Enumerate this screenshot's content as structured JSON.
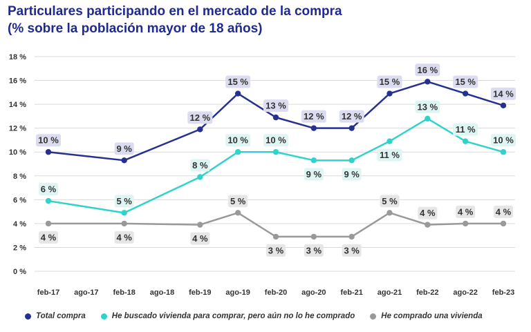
{
  "title": {
    "line1": "Particulares participando en el mercado de la compra",
    "line2": "(% sobre la población mayor de 18 años)"
  },
  "colors": {
    "title": "#1f2a8f",
    "grid": "#d9d9d9"
  },
  "legend": [
    {
      "label": "Total compra",
      "color": "#26318f"
    },
    {
      "label": "He buscado vivienda para comprar, pero aún no lo he comprado",
      "color": "#2ed3cb"
    },
    {
      "label": "He comprado una vivienda",
      "color": "#999999"
    }
  ],
  "chart_data": {
    "type": "line",
    "categories": [
      "feb-17",
      "ago-17",
      "feb-18",
      "ago-18",
      "feb-19",
      "ago-19",
      "feb-20",
      "ago-20",
      "feb-21",
      "ago-21",
      "feb-22",
      "ago-22",
      "feb-23"
    ],
    "ylim": [
      0,
      18
    ],
    "yticks": [
      0,
      2,
      4,
      6,
      8,
      10,
      12,
      14,
      16,
      18
    ],
    "ytick_labels": [
      "0 %",
      "2 %",
      "4 %",
      "6 %",
      "8 %",
      "10 %",
      "12 %",
      "14 %",
      "16 %",
      "18 %"
    ],
    "grid": true,
    "legend_position": "bottom",
    "series": [
      {
        "name": "Total compra",
        "color": "#26318f",
        "label_bg": "#dcdcf0",
        "label_pos": "above",
        "points": [
          {
            "cat": "feb-17",
            "value": 10,
            "label": "10 %"
          },
          {
            "cat": "feb-18",
            "value": 9.3,
            "label": "9 %"
          },
          {
            "cat": "feb-19",
            "value": 11.9,
            "label": "12 %"
          },
          {
            "cat": "ago-19",
            "value": 14.9,
            "label": "15 %"
          },
          {
            "cat": "feb-20",
            "value": 12.9,
            "label": "13 %"
          },
          {
            "cat": "ago-20",
            "value": 12,
            "label": "12 %"
          },
          {
            "cat": "feb-21",
            "value": 12,
            "label": "12 %"
          },
          {
            "cat": "ago-21",
            "value": 14.9,
            "label": "15 %"
          },
          {
            "cat": "feb-22",
            "value": 15.9,
            "label": "16 %"
          },
          {
            "cat": "ago-22",
            "value": 14.9,
            "label": "15 %"
          },
          {
            "cat": "feb-23",
            "value": 13.9,
            "label": "14 %"
          }
        ]
      },
      {
        "name": "He buscado vivienda para comprar, pero aún no lo he comprado",
        "color": "#2ed3cb",
        "label_bg": "#dff5f4",
        "label_pos": "mixed",
        "points": [
          {
            "cat": "feb-17",
            "value": 5.9,
            "label": "6 %",
            "pos": "above"
          },
          {
            "cat": "feb-18",
            "value": 4.9,
            "label": "5 %",
            "pos": "above"
          },
          {
            "cat": "feb-19",
            "value": 7.9,
            "label": "8 %",
            "pos": "above"
          },
          {
            "cat": "ago-19",
            "value": 10,
            "label": "10 %",
            "pos": "above"
          },
          {
            "cat": "feb-20",
            "value": 10,
            "label": "10 %",
            "pos": "above"
          },
          {
            "cat": "ago-20",
            "value": 9.3,
            "label": "9 %",
            "pos": "below"
          },
          {
            "cat": "feb-21",
            "value": 9.3,
            "label": "9 %",
            "pos": "below"
          },
          {
            "cat": "ago-21",
            "value": 10.9,
            "label": "11 %",
            "pos": "below"
          },
          {
            "cat": "feb-22",
            "value": 12.8,
            "label": "13 %",
            "pos": "above"
          },
          {
            "cat": "ago-22",
            "value": 10.9,
            "label": "11 %",
            "pos": "above"
          },
          {
            "cat": "feb-23",
            "value": 10,
            "label": "10 %",
            "pos": "above"
          }
        ]
      },
      {
        "name": "He comprado una vivienda",
        "color": "#999999",
        "label_bg": "#e6e6e6",
        "label_pos": "mixed",
        "points": [
          {
            "cat": "feb-17",
            "value": 4,
            "label": "4 %",
            "pos": "below"
          },
          {
            "cat": "feb-18",
            "value": 4,
            "label": "4 %",
            "pos": "below"
          },
          {
            "cat": "feb-19",
            "value": 3.9,
            "label": "4 %",
            "pos": "below"
          },
          {
            "cat": "ago-19",
            "value": 4.9,
            "label": "5 %",
            "pos": "above"
          },
          {
            "cat": "feb-20",
            "value": 2.9,
            "label": "3 %",
            "pos": "below"
          },
          {
            "cat": "ago-20",
            "value": 2.9,
            "label": "3 %",
            "pos": "below"
          },
          {
            "cat": "feb-21",
            "value": 2.9,
            "label": "3 %",
            "pos": "below"
          },
          {
            "cat": "ago-21",
            "value": 4.9,
            "label": "5 %",
            "pos": "above"
          },
          {
            "cat": "feb-22",
            "value": 3.9,
            "label": "4 %",
            "pos": "above"
          },
          {
            "cat": "ago-22",
            "value": 4,
            "label": "4 %",
            "pos": "above"
          },
          {
            "cat": "feb-23",
            "value": 4,
            "label": "4 %",
            "pos": "above"
          }
        ]
      }
    ]
  }
}
